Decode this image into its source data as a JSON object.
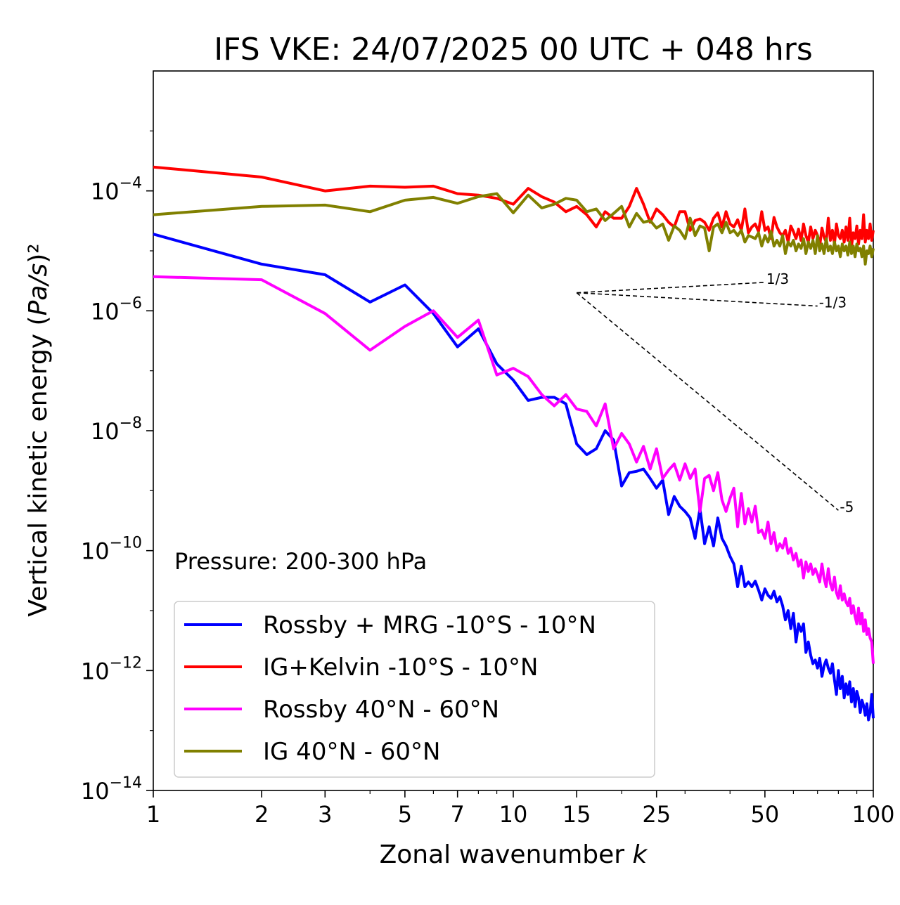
{
  "chart_data": {
    "type": "line",
    "title": "IFS VKE: 24/07/2025 00 UTC + 048 hrs",
    "xlabel": "Zonal wavenumber k",
    "ylabel": "Vertical kinetic energy (Pa/s)²",
    "xscale": "log",
    "yscale": "log",
    "xlim": [
      1,
      100
    ],
    "ylim": [
      1e-14,
      0.01
    ],
    "xticks": [
      1,
      2,
      3,
      5,
      7,
      10,
      15,
      25,
      50,
      100
    ],
    "xtick_labels": [
      "1",
      "2",
      "3",
      "5",
      "7",
      "10",
      "15",
      "25",
      "50",
      "100"
    ],
    "yticks": [
      {
        "value": 1e-14,
        "base": "10",
        "exp": "−14"
      },
      {
        "value": 1e-12,
        "base": "10",
        "exp": "−12"
      },
      {
        "value": 1e-10,
        "base": "10",
        "exp": "−10"
      },
      {
        "value": 1e-08,
        "base": "10",
        "exp": "−8"
      },
      {
        "value": 1e-06,
        "base": "10",
        "exp": "−6"
      },
      {
        "value": 0.0001,
        "base": "10",
        "exp": "−4"
      }
    ],
    "grid": false,
    "legend_position": "lower-left",
    "annotation": "Pressure: 200-300 hPa",
    "reference_slopes": [
      {
        "label": "1/3",
        "x0": 15,
        "y0": 2e-06,
        "x1": 50,
        "y1": 2.98e-06
      },
      {
        "label": "-1/3",
        "x0": 15,
        "y0": 2e-06,
        "x1": 70,
        "y1": 1.2e-06
      },
      {
        "label": "-5",
        "x0": 15,
        "y0": 2e-06,
        "x1": 80,
        "y1": 4.7e-10
      }
    ],
    "series": [
      {
        "name": "Rossby + MRG -10°S - 10°N",
        "color": "#0000ff",
        "x": [
          1,
          2,
          3,
          4,
          5,
          6,
          7,
          8,
          9,
          10,
          11,
          12,
          13,
          14,
          15,
          16,
          17,
          18,
          19,
          20,
          21,
          22,
          23,
          24,
          25,
          26,
          27,
          28,
          29,
          30,
          31,
          32,
          33,
          34,
          35,
          36,
          37,
          38,
          39,
          40,
          41,
          42,
          43,
          44,
          45,
          46,
          47,
          48,
          49,
          50,
          51,
          52,
          53,
          54,
          55,
          56,
          57,
          58,
          59,
          60,
          61,
          62,
          63,
          64,
          65,
          66,
          67,
          68,
          69,
          70,
          71,
          72,
          73,
          74,
          75,
          76,
          77,
          78,
          79,
          80,
          81,
          82,
          83,
          84,
          85,
          86,
          87,
          88,
          89,
          90,
          91,
          92,
          93,
          94,
          95,
          96,
          97,
          98,
          99,
          100
        ],
        "y": [
          1.9e-05,
          6e-06,
          4e-06,
          1.4e-06,
          2.7e-06,
          9e-07,
          2.5e-07,
          5e-07,
          1.3e-07,
          7e-08,
          3.2e-08,
          3.6e-08,
          3.6e-08,
          2.8e-08,
          6e-09,
          4e-09,
          5e-09,
          1e-08,
          7e-09,
          1.2e-09,
          2e-09,
          2.1e-09,
          2.3e-09,
          1.6e-09,
          1.1e-09,
          1.5e-09,
          4e-10,
          8e-10,
          5.5e-10,
          4.5e-10,
          3.5e-10,
          1.6e-10,
          5e-10,
          1.3e-10,
          2.5e-10,
          1.2e-10,
          3.5e-10,
          1.6e-10,
          1.2e-10,
          8e-11,
          6e-11,
          2.5e-11,
          5.5e-11,
          2.5e-11,
          3e-11,
          2.5e-11,
          3.1e-11,
          2.2e-11,
          1.5e-11,
          2.3e-11,
          1.8e-11,
          1.6e-11,
          2.1e-11,
          1.4e-11,
          1.7e-11,
          1.2e-11,
          7e-12,
          1e-11,
          5e-12,
          9e-12,
          3e-12,
          6e-12,
          4.5e-12,
          6e-12,
          2e-12,
          3e-12,
          1.8e-12,
          1.3e-12,
          1.5e-12,
          1.1e-12,
          1.6e-12,
          8e-13,
          1.2e-12,
          1.5e-12,
          1.1e-12,
          9e-13,
          1.3e-12,
          7e-13,
          4e-13,
          1e-12,
          5e-13,
          8e-13,
          3.5e-13,
          6e-13,
          4e-13,
          6.5e-13,
          3e-13,
          5e-13,
          2.5e-13,
          4.5e-13,
          3.5e-13,
          2e-13,
          3.2e-13,
          2.6e-13,
          1.8e-13,
          2.8e-13,
          1.5e-13,
          2e-13,
          4e-13,
          1.6e-13
        ]
      },
      {
        "name": "IG+Kelvin -10°S - 10°N",
        "color": "#ff0000",
        "x": [
          1,
          2,
          3,
          4,
          5,
          6,
          7,
          8,
          9,
          10,
          11,
          12,
          13,
          14,
          15,
          16,
          17,
          18,
          19,
          20,
          21,
          22,
          23,
          24,
          25,
          26,
          27,
          28,
          29,
          30,
          31,
          32,
          33,
          34,
          35,
          36,
          37,
          38,
          39,
          40,
          41,
          42,
          43,
          44,
          45,
          46,
          47,
          48,
          49,
          50,
          51,
          52,
          53,
          54,
          55,
          56,
          57,
          58,
          59,
          60,
          61,
          62,
          63,
          64,
          65,
          66,
          67,
          68,
          69,
          70,
          71,
          72,
          73,
          74,
          75,
          76,
          77,
          78,
          79,
          80,
          81,
          82,
          83,
          84,
          85,
          86,
          87,
          88,
          89,
          90,
          91,
          92,
          93,
          94,
          95,
          96,
          97,
          98,
          99,
          100
        ],
        "y": [
          0.00025,
          0.00017,
          0.0001,
          0.00012,
          0.000115,
          0.00012,
          9e-05,
          8.5e-05,
          7.5e-05,
          6e-05,
          0.00011,
          8e-05,
          6.5e-05,
          4.5e-05,
          5.5e-05,
          4e-05,
          2.5e-05,
          4.5e-05,
          3.5e-05,
          3.5e-05,
          5.5e-05,
          0.00011,
          6e-05,
          3e-05,
          5e-05,
          4e-05,
          3e-05,
          2.5e-05,
          4.5e-05,
          4.5e-05,
          2.2e-05,
          3.2e-05,
          3.4e-05,
          3e-05,
          2.2e-05,
          3.5e-05,
          4.3e-05,
          2.5e-05,
          4.5e-05,
          2.8e-05,
          2.5e-05,
          3.3e-05,
          2.2e-05,
          5e-05,
          2e-05,
          2.5e-05,
          2.8e-05,
          2.1e-05,
          4.5e-05,
          2.2e-05,
          2.5e-05,
          1.6e-05,
          3.6e-05,
          2.5e-05,
          2e-05,
          1.8e-05,
          2.2e-05,
          1.4e-05,
          2.6e-05,
          2.1e-05,
          1.6e-05,
          2.3e-05,
          1.5e-05,
          2.8e-05,
          1.8e-05,
          1.4e-05,
          2.5e-05,
          1.6e-05,
          2.2e-05,
          1.8e-05,
          1.2e-05,
          2.4e-05,
          1.7e-05,
          1.4e-05,
          3.5e-05,
          1.5e-05,
          2.2e-05,
          1.3e-05,
          2.8e-05,
          1.8e-05,
          1.6e-05,
          2.2e-05,
          1.4e-05,
          2.5e-05,
          1.5e-05,
          3.5e-05,
          1.2e-05,
          2e-05,
          1.6e-05,
          2.6e-05,
          1.3e-05,
          2.2e-05,
          1.6e-05,
          4e-05,
          1.4e-05,
          2.2e-05,
          1.6e-05,
          2.8e-05,
          1.5e-05,
          2.2e-05
        ]
      },
      {
        "name": "Rossby 40°N - 60°N",
        "color": "#ff00ff",
        "x": [
          1,
          2,
          3,
          4,
          5,
          6,
          7,
          8,
          9,
          10,
          11,
          12,
          13,
          14,
          15,
          16,
          17,
          18,
          19,
          20,
          21,
          22,
          23,
          24,
          25,
          26,
          27,
          28,
          29,
          30,
          31,
          32,
          33,
          34,
          35,
          36,
          37,
          38,
          39,
          40,
          41,
          42,
          43,
          44,
          45,
          46,
          47,
          48,
          49,
          50,
          51,
          52,
          53,
          54,
          55,
          56,
          57,
          58,
          59,
          60,
          61,
          62,
          63,
          64,
          65,
          66,
          67,
          68,
          69,
          70,
          71,
          72,
          73,
          74,
          75,
          76,
          77,
          78,
          79,
          80,
          81,
          82,
          83,
          84,
          85,
          86,
          87,
          88,
          89,
          90,
          91,
          92,
          93,
          94,
          95,
          96,
          97,
          98,
          99,
          100
        ],
        "y": [
          3.7e-06,
          3.3e-06,
          9e-07,
          2.2e-07,
          5.5e-07,
          1e-06,
          3.6e-07,
          7e-07,
          8.5e-08,
          1.1e-07,
          8e-08,
          4e-08,
          2.6e-08,
          4e-08,
          2.3e-08,
          2.1e-08,
          1.2e-08,
          2.8e-08,
          5e-09,
          9e-09,
          6e-09,
          3e-09,
          5.5e-09,
          2.3e-09,
          5e-09,
          1.6e-09,
          2.2e-09,
          2.8e-09,
          1.5e-09,
          2.8e-09,
          1.6e-09,
          2.3e-09,
          4.5e-10,
          1.6e-09,
          1.8e-09,
          1e-09,
          2e-09,
          7e-10,
          4.5e-10,
          7.5e-10,
          1.1e-09,
          2.5e-10,
          9e-10,
          2.8e-10,
          5e-10,
          3e-10,
          5.5e-10,
          2e-10,
          2.2e-10,
          1.6e-10,
          3e-10,
          1.3e-10,
          2e-10,
          1e-10,
          1.3e-10,
          1.1e-10,
          1.6e-10,
          9e-11,
          1.1e-10,
          7e-11,
          9e-11,
          5.5e-11,
          7e-11,
          3.5e-11,
          6.5e-11,
          4.5e-11,
          6e-11,
          4e-11,
          5e-11,
          4e-11,
          3e-11,
          6e-11,
          3.5e-11,
          2.5e-11,
          5e-11,
          2.8e-11,
          2.2e-11,
          3.6e-11,
          2e-11,
          1.6e-11,
          2.6e-11,
          1.5e-11,
          1.9e-11,
          1.4e-11,
          1.2e-11,
          1.6e-11,
          9e-12,
          1.2e-11,
          8e-12,
          6e-12,
          1.1e-11,
          6e-12,
          9e-12,
          4.5e-12,
          7e-12,
          4e-12,
          5e-12,
          3.5e-12,
          3e-12,
          1.3e-12
        ]
      },
      {
        "name": "IG 40°N - 60°N",
        "color": "#808000",
        "x": [
          1,
          2,
          3,
          4,
          5,
          6,
          7,
          8,
          9,
          10,
          11,
          12,
          13,
          14,
          15,
          16,
          17,
          18,
          19,
          20,
          21,
          22,
          23,
          24,
          25,
          26,
          27,
          28,
          29,
          30,
          31,
          32,
          33,
          34,
          35,
          36,
          37,
          38,
          39,
          40,
          41,
          42,
          43,
          44,
          45,
          46,
          47,
          48,
          49,
          50,
          51,
          52,
          53,
          54,
          55,
          56,
          57,
          58,
          59,
          60,
          61,
          62,
          63,
          64,
          65,
          66,
          67,
          68,
          69,
          70,
          71,
          72,
          73,
          74,
          75,
          76,
          77,
          78,
          79,
          80,
          81,
          82,
          83,
          84,
          85,
          86,
          87,
          88,
          89,
          90,
          91,
          92,
          93,
          94,
          95,
          96,
          97,
          98,
          99,
          100
        ],
        "y": [
          4e-05,
          5.5e-05,
          5.8e-05,
          4.5e-05,
          7e-05,
          7.8e-05,
          6.2e-05,
          8e-05,
          9e-05,
          4.3e-05,
          8.5e-05,
          5.2e-05,
          6e-05,
          7.5e-05,
          7e-05,
          4.5e-05,
          5e-05,
          3.2e-05,
          4.2e-05,
          5.5e-05,
          2.5e-05,
          4.2e-05,
          3e-05,
          3.2e-05,
          2.4e-05,
          2.8e-05,
          1.5e-05,
          2.6e-05,
          2.2e-05,
          1.6e-05,
          3.5e-05,
          1.8e-05,
          2.6e-05,
          2.4e-05,
          1e-05,
          2.5e-05,
          2.8e-05,
          2e-05,
          3e-05,
          2e-05,
          2.2e-05,
          1.8e-05,
          2.2e-05,
          1.4e-05,
          1.8e-05,
          1.7e-05,
          1.6e-05,
          2e-05,
          1.2e-05,
          1.8e-05,
          1.4e-05,
          2.1e-05,
          1.2e-05,
          1.5e-05,
          1.2e-05,
          1.8e-05,
          9e-06,
          1.4e-05,
          1.2e-05,
          1.5e-05,
          1e-05,
          1.3e-05,
          1.1e-05,
          1.6e-05,
          9e-06,
          1.4e-05,
          1.1e-05,
          1.5e-05,
          9e-06,
          1.8e-05,
          1e-05,
          1.3e-05,
          9e-06,
          1.6e-05,
          1e-05,
          1.2e-05,
          9e-06,
          1.4e-05,
          1e-05,
          1.2e-05,
          8e-06,
          1.3e-05,
          1e-05,
          1.2e-05,
          8.5e-06,
          1.4e-05,
          9e-06,
          1.2e-05,
          8e-06,
          1.3e-05,
          1e-05,
          1.1e-05,
          8e-06,
          1.2e-05,
          6e-06,
          1e-05,
          9e-06,
          1.2e-05,
          8e-06,
          1.1e-05
        ]
      }
    ]
  }
}
